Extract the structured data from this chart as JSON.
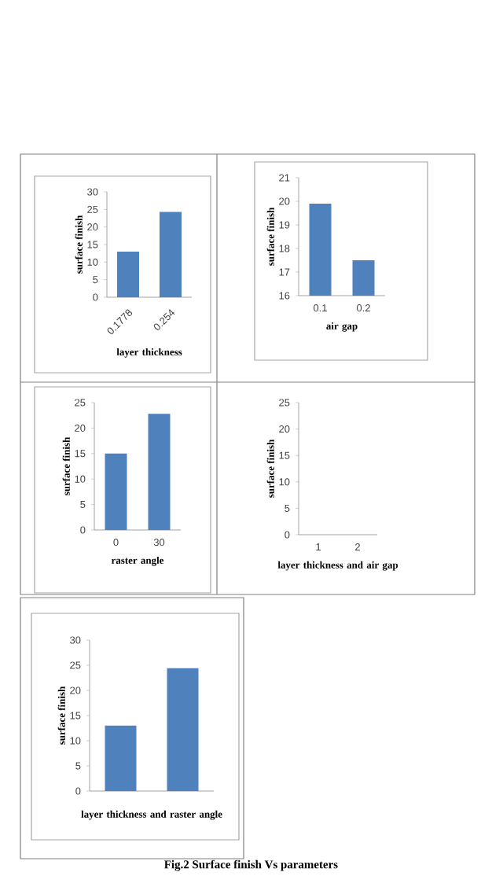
{
  "chart_data": [
    {
      "type": "bar",
      "categories": [
        "0.1778",
        "0.254"
      ],
      "values": [
        13,
        24.3
      ],
      "color": "#4f81bd",
      "ylim": [
        0,
        30
      ],
      "yticks": [
        0,
        5,
        10,
        15,
        20,
        25,
        30
      ],
      "xlabel": "layer thickness",
      "ylabel": "surface finish"
    },
    {
      "type": "bar",
      "categories": [
        "0.1",
        "0.2"
      ],
      "values": [
        19.9,
        17.5
      ],
      "color": "#4f81bd",
      "ylim": [
        16,
        21
      ],
      "yticks": [
        16,
        17,
        18,
        19,
        20,
        21
      ],
      "xlabel": "air gap",
      "ylabel": "surface finish"
    },
    {
      "type": "bar",
      "categories": [
        "0",
        "30"
      ],
      "values": [
        15,
        22.8
      ],
      "color": "#4f81bd",
      "ylim": [
        0,
        25
      ],
      "yticks": [
        0,
        5,
        10,
        15,
        20,
        25
      ],
      "xlabel": "raster angle",
      "ylabel": "surface finish"
    },
    {
      "type": "bar",
      "categories": [
        "1",
        "2"
      ],
      "values": [
        null,
        null
      ],
      "color": "#4f81bd",
      "ylim": [
        0,
        25
      ],
      "yticks": [
        0,
        5,
        10,
        15,
        20,
        25
      ],
      "xlabel": "layer thickness and air gap",
      "ylabel": "surface finish"
    },
    {
      "type": "bar",
      "categories": [
        null,
        null
      ],
      "values": [
        13,
        24.4
      ],
      "color": "#4f81bd",
      "ylim": [
        0,
        30
      ],
      "yticks": [
        0,
        5,
        10,
        15,
        20,
        25,
        30
      ],
      "xlabel": "layer thickness and raster angle",
      "ylabel": "surface finish",
      "annotations": [
        "Fig.2 Surface finish Vs parameters"
      ]
    }
  ]
}
